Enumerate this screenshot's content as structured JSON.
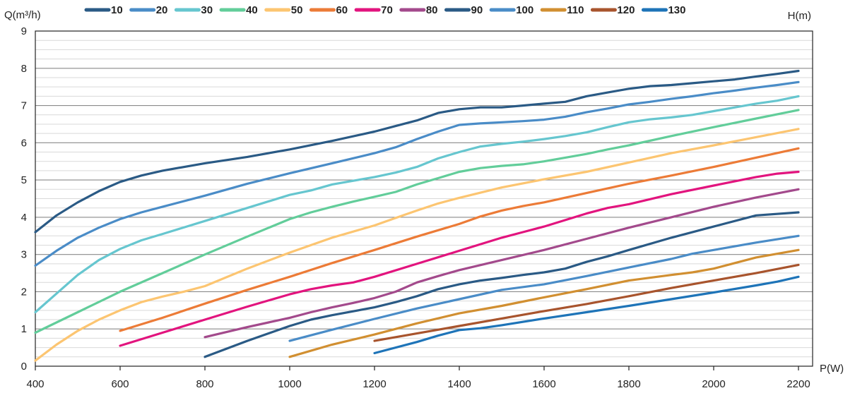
{
  "chart_data": {
    "type": "line",
    "ylabel": "Q(m³/h)",
    "xlabel": "P(W)",
    "legend_title": "H(m)",
    "xlim": [
      400,
      2200
    ],
    "ylim": [
      0,
      9
    ],
    "x_ticks": [
      400,
      600,
      800,
      1000,
      1200,
      1400,
      1600,
      1800,
      2000,
      2200
    ],
    "y_ticks": [
      0,
      1,
      2,
      3,
      4,
      5,
      6,
      7,
      8,
      9
    ],
    "grid": true,
    "legend_position": "top",
    "series": [
      {
        "name": "10",
        "color": "#2a5a85",
        "points": [
          [
            400,
            3.6
          ],
          [
            450,
            4.05
          ],
          [
            500,
            4.4
          ],
          [
            550,
            4.7
          ],
          [
            600,
            4.95
          ],
          [
            650,
            5.12
          ],
          [
            700,
            5.25
          ],
          [
            800,
            5.45
          ],
          [
            900,
            5.62
          ],
          [
            1000,
            5.82
          ],
          [
            1100,
            6.05
          ],
          [
            1200,
            6.3
          ],
          [
            1250,
            6.45
          ],
          [
            1300,
            6.6
          ],
          [
            1350,
            6.8
          ],
          [
            1400,
            6.9
          ],
          [
            1450,
            6.95
          ],
          [
            1500,
            6.95
          ],
          [
            1550,
            7.0
          ],
          [
            1600,
            7.05
          ],
          [
            1650,
            7.1
          ],
          [
            1700,
            7.25
          ],
          [
            1750,
            7.35
          ],
          [
            1800,
            7.45
          ],
          [
            1850,
            7.52
          ],
          [
            1900,
            7.55
          ],
          [
            1950,
            7.6
          ],
          [
            2000,
            7.65
          ],
          [
            2050,
            7.7
          ],
          [
            2100,
            7.78
          ],
          [
            2150,
            7.85
          ],
          [
            2200,
            7.93
          ]
        ]
      },
      {
        "name": "20",
        "color": "#4a8cc7",
        "points": [
          [
            400,
            2.7
          ],
          [
            450,
            3.1
          ],
          [
            500,
            3.45
          ],
          [
            550,
            3.72
          ],
          [
            600,
            3.95
          ],
          [
            650,
            4.13
          ],
          [
            700,
            4.28
          ],
          [
            800,
            4.58
          ],
          [
            900,
            4.9
          ],
          [
            1000,
            5.18
          ],
          [
            1100,
            5.45
          ],
          [
            1200,
            5.72
          ],
          [
            1250,
            5.88
          ],
          [
            1300,
            6.1
          ],
          [
            1350,
            6.3
          ],
          [
            1400,
            6.48
          ],
          [
            1450,
            6.52
          ],
          [
            1500,
            6.55
          ],
          [
            1550,
            6.58
          ],
          [
            1600,
            6.62
          ],
          [
            1650,
            6.7
          ],
          [
            1700,
            6.82
          ],
          [
            1750,
            6.92
          ],
          [
            1800,
            7.03
          ],
          [
            1850,
            7.1
          ],
          [
            1900,
            7.18
          ],
          [
            1950,
            7.25
          ],
          [
            2000,
            7.33
          ],
          [
            2050,
            7.4
          ],
          [
            2100,
            7.48
          ],
          [
            2150,
            7.55
          ],
          [
            2200,
            7.63
          ]
        ]
      },
      {
        "name": "30",
        "color": "#66c6cf",
        "points": [
          [
            400,
            1.45
          ],
          [
            450,
            1.95
          ],
          [
            500,
            2.45
          ],
          [
            550,
            2.85
          ],
          [
            600,
            3.15
          ],
          [
            650,
            3.38
          ],
          [
            700,
            3.55
          ],
          [
            800,
            3.9
          ],
          [
            900,
            4.25
          ],
          [
            1000,
            4.6
          ],
          [
            1050,
            4.72
          ],
          [
            1100,
            4.88
          ],
          [
            1200,
            5.08
          ],
          [
            1250,
            5.2
          ],
          [
            1300,
            5.35
          ],
          [
            1350,
            5.58
          ],
          [
            1400,
            5.75
          ],
          [
            1450,
            5.9
          ],
          [
            1500,
            5.97
          ],
          [
            1550,
            6.03
          ],
          [
            1600,
            6.1
          ],
          [
            1650,
            6.18
          ],
          [
            1700,
            6.28
          ],
          [
            1750,
            6.42
          ],
          [
            1800,
            6.55
          ],
          [
            1850,
            6.63
          ],
          [
            1900,
            6.68
          ],
          [
            1950,
            6.75
          ],
          [
            2000,
            6.85
          ],
          [
            2050,
            6.95
          ],
          [
            2100,
            7.05
          ],
          [
            2150,
            7.13
          ],
          [
            2200,
            7.25
          ]
        ]
      },
      {
        "name": "40",
        "color": "#62cd9a",
        "points": [
          [
            400,
            0.9
          ],
          [
            500,
            1.45
          ],
          [
            600,
            2.0
          ],
          [
            700,
            2.5
          ],
          [
            800,
            3.0
          ],
          [
            900,
            3.48
          ],
          [
            1000,
            3.95
          ],
          [
            1050,
            4.13
          ],
          [
            1100,
            4.28
          ],
          [
            1150,
            4.42
          ],
          [
            1200,
            4.55
          ],
          [
            1250,
            4.68
          ],
          [
            1300,
            4.88
          ],
          [
            1350,
            5.05
          ],
          [
            1400,
            5.22
          ],
          [
            1450,
            5.32
          ],
          [
            1500,
            5.38
          ],
          [
            1550,
            5.42
          ],
          [
            1600,
            5.5
          ],
          [
            1650,
            5.6
          ],
          [
            1700,
            5.7
          ],
          [
            1750,
            5.82
          ],
          [
            1800,
            5.93
          ],
          [
            1900,
            6.18
          ],
          [
            2000,
            6.42
          ],
          [
            2100,
            6.65
          ],
          [
            2200,
            6.88
          ]
        ]
      },
      {
        "name": "50",
        "color": "#fcc571",
        "points": [
          [
            400,
            0.15
          ],
          [
            450,
            0.58
          ],
          [
            500,
            0.95
          ],
          [
            550,
            1.25
          ],
          [
            600,
            1.5
          ],
          [
            650,
            1.72
          ],
          [
            700,
            1.87
          ],
          [
            750,
            2.0
          ],
          [
            800,
            2.15
          ],
          [
            900,
            2.62
          ],
          [
            1000,
            3.05
          ],
          [
            1100,
            3.45
          ],
          [
            1200,
            3.78
          ],
          [
            1250,
            3.98
          ],
          [
            1300,
            4.18
          ],
          [
            1350,
            4.37
          ],
          [
            1400,
            4.52
          ],
          [
            1500,
            4.8
          ],
          [
            1600,
            5.02
          ],
          [
            1700,
            5.22
          ],
          [
            1800,
            5.47
          ],
          [
            1900,
            5.72
          ],
          [
            2000,
            5.93
          ],
          [
            2100,
            6.15
          ],
          [
            2200,
            6.37
          ]
        ]
      },
      {
        "name": "60",
        "color": "#ec7b37",
        "points": [
          [
            600,
            0.95
          ],
          [
            700,
            1.3
          ],
          [
            800,
            1.68
          ],
          [
            900,
            2.05
          ],
          [
            1000,
            2.4
          ],
          [
            1100,
            2.77
          ],
          [
            1200,
            3.12
          ],
          [
            1300,
            3.48
          ],
          [
            1400,
            3.82
          ],
          [
            1450,
            4.02
          ],
          [
            1500,
            4.18
          ],
          [
            1550,
            4.3
          ],
          [
            1600,
            4.4
          ],
          [
            1700,
            4.65
          ],
          [
            1800,
            4.9
          ],
          [
            1900,
            5.12
          ],
          [
            2000,
            5.35
          ],
          [
            2100,
            5.6
          ],
          [
            2200,
            5.85
          ]
        ]
      },
      {
        "name": "70",
        "color": "#e2147e",
        "points": [
          [
            600,
            0.55
          ],
          [
            700,
            0.9
          ],
          [
            800,
            1.25
          ],
          [
            900,
            1.6
          ],
          [
            1000,
            1.93
          ],
          [
            1050,
            2.07
          ],
          [
            1100,
            2.17
          ],
          [
            1150,
            2.25
          ],
          [
            1200,
            2.4
          ],
          [
            1300,
            2.75
          ],
          [
            1400,
            3.1
          ],
          [
            1500,
            3.45
          ],
          [
            1550,
            3.6
          ],
          [
            1600,
            3.75
          ],
          [
            1700,
            4.1
          ],
          [
            1750,
            4.25
          ],
          [
            1800,
            4.35
          ],
          [
            1900,
            4.62
          ],
          [
            2000,
            4.85
          ],
          [
            2100,
            5.08
          ],
          [
            2150,
            5.17
          ],
          [
            2200,
            5.22
          ]
        ]
      },
      {
        "name": "80",
        "color": "#a34a8c",
        "points": [
          [
            800,
            0.78
          ],
          [
            900,
            1.05
          ],
          [
            1000,
            1.3
          ],
          [
            1050,
            1.45
          ],
          [
            1100,
            1.58
          ],
          [
            1150,
            1.7
          ],
          [
            1200,
            1.83
          ],
          [
            1250,
            2.0
          ],
          [
            1300,
            2.25
          ],
          [
            1350,
            2.42
          ],
          [
            1400,
            2.58
          ],
          [
            1500,
            2.85
          ],
          [
            1600,
            3.12
          ],
          [
            1700,
            3.42
          ],
          [
            1800,
            3.72
          ],
          [
            1900,
            4.0
          ],
          [
            2000,
            4.28
          ],
          [
            2100,
            4.53
          ],
          [
            2200,
            4.75
          ]
        ]
      },
      {
        "name": "90",
        "color": "#2a5a85",
        "points": [
          [
            800,
            0.25
          ],
          [
            900,
            0.68
          ],
          [
            1000,
            1.08
          ],
          [
            1050,
            1.25
          ],
          [
            1100,
            1.37
          ],
          [
            1200,
            1.58
          ],
          [
            1250,
            1.72
          ],
          [
            1300,
            1.88
          ],
          [
            1350,
            2.07
          ],
          [
            1400,
            2.2
          ],
          [
            1450,
            2.3
          ],
          [
            1500,
            2.37
          ],
          [
            1550,
            2.45
          ],
          [
            1600,
            2.52
          ],
          [
            1650,
            2.62
          ],
          [
            1700,
            2.8
          ],
          [
            1750,
            2.95
          ],
          [
            1800,
            3.12
          ],
          [
            1900,
            3.45
          ],
          [
            2000,
            3.75
          ],
          [
            2100,
            4.05
          ],
          [
            2200,
            4.13
          ]
        ]
      },
      {
        "name": "100",
        "color": "#4a8cc7",
        "points": [
          [
            1000,
            0.68
          ],
          [
            1100,
            0.98
          ],
          [
            1200,
            1.27
          ],
          [
            1300,
            1.55
          ],
          [
            1400,
            1.8
          ],
          [
            1500,
            2.05
          ],
          [
            1600,
            2.2
          ],
          [
            1700,
            2.42
          ],
          [
            1800,
            2.65
          ],
          [
            1900,
            2.88
          ],
          [
            1950,
            3.02
          ],
          [
            2000,
            3.12
          ],
          [
            2100,
            3.32
          ],
          [
            2200,
            3.5
          ]
        ]
      },
      {
        "name": "110",
        "color": "#d18f31",
        "points": [
          [
            1000,
            0.25
          ],
          [
            1100,
            0.58
          ],
          [
            1200,
            0.85
          ],
          [
            1300,
            1.15
          ],
          [
            1400,
            1.42
          ],
          [
            1500,
            1.62
          ],
          [
            1600,
            1.85
          ],
          [
            1700,
            2.07
          ],
          [
            1800,
            2.3
          ],
          [
            1900,
            2.45
          ],
          [
            1950,
            2.52
          ],
          [
            2000,
            2.62
          ],
          [
            2050,
            2.77
          ],
          [
            2100,
            2.92
          ],
          [
            2200,
            3.12
          ]
        ]
      },
      {
        "name": "120",
        "color": "#a8542d",
        "points": [
          [
            1200,
            0.68
          ],
          [
            1300,
            0.88
          ],
          [
            1400,
            1.08
          ],
          [
            1500,
            1.28
          ],
          [
            1600,
            1.48
          ],
          [
            1700,
            1.67
          ],
          [
            1800,
            1.88
          ],
          [
            1900,
            2.1
          ],
          [
            2000,
            2.3
          ],
          [
            2100,
            2.5
          ],
          [
            2200,
            2.72
          ]
        ]
      },
      {
        "name": "130",
        "color": "#1e74b8",
        "points": [
          [
            1200,
            0.35
          ],
          [
            1300,
            0.65
          ],
          [
            1350,
            0.82
          ],
          [
            1400,
            0.97
          ],
          [
            1450,
            1.02
          ],
          [
            1500,
            1.1
          ],
          [
            1600,
            1.28
          ],
          [
            1700,
            1.45
          ],
          [
            1800,
            1.62
          ],
          [
            1900,
            1.8
          ],
          [
            2000,
            1.98
          ],
          [
            2100,
            2.17
          ],
          [
            2150,
            2.27
          ],
          [
            2200,
            2.4
          ]
        ]
      }
    ]
  }
}
